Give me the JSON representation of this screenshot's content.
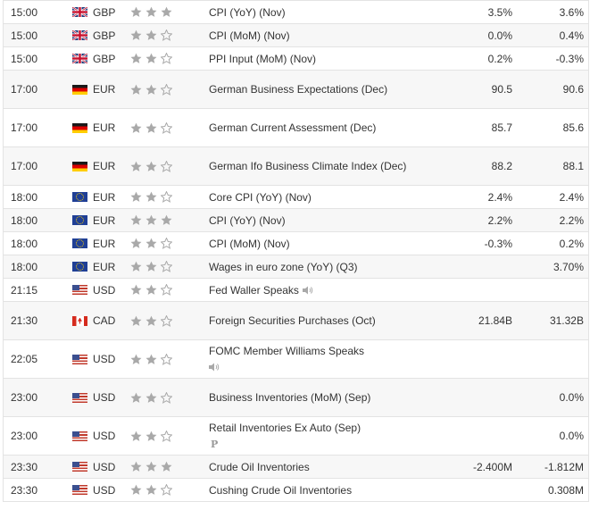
{
  "colors": {
    "star_filled": "#a9a9a9",
    "star_empty": "#a9a9a9",
    "border": "#e3e3e3",
    "text": "#333333"
  },
  "rows": [
    {
      "time": "15:00",
      "flag": "gb-flag-icon",
      "currency": "GBP",
      "importance": 3,
      "event": "CPI (YoY) (Nov)",
      "actual": "3.5%",
      "forecast": "3.6%",
      "lines": 1
    },
    {
      "time": "15:00",
      "flag": "gb-flag-icon",
      "currency": "GBP",
      "importance": 2,
      "event": "CPI (MoM) (Nov)",
      "actual": "0.0%",
      "forecast": "0.4%",
      "lines": 1
    },
    {
      "time": "15:00",
      "flag": "gb-flag-icon",
      "currency": "GBP",
      "importance": 2,
      "event": "PPI Input (MoM) (Nov)",
      "actual": "0.2%",
      "forecast": "-0.3%",
      "lines": 1
    },
    {
      "time": "17:00",
      "flag": "de-flag-icon",
      "currency": "EUR",
      "importance": 2,
      "event": "German Business Expectations (Dec)",
      "actual": "90.5",
      "forecast": "90.6",
      "lines": 2
    },
    {
      "time": "17:00",
      "flag": "de-flag-icon",
      "currency": "EUR",
      "importance": 2,
      "event": "German Current Assessment (Dec)",
      "actual": "85.7",
      "forecast": "85.6",
      "lines": 2
    },
    {
      "time": "17:00",
      "flag": "de-flag-icon",
      "currency": "EUR",
      "importance": 2,
      "event": "German Ifo Business Climate Index (Dec)",
      "actual": "88.2",
      "forecast": "88.1",
      "lines": 2
    },
    {
      "time": "18:00",
      "flag": "eu-flag-icon",
      "currency": "EUR",
      "importance": 2,
      "event": "Core CPI (YoY) (Nov)",
      "actual": "2.4%",
      "forecast": "2.4%",
      "lines": 1
    },
    {
      "time": "18:00",
      "flag": "eu-flag-icon",
      "currency": "EUR",
      "importance": 3,
      "event": "CPI (YoY) (Nov)",
      "actual": "2.2%",
      "forecast": "2.2%",
      "lines": 1
    },
    {
      "time": "18:00",
      "flag": "eu-flag-icon",
      "currency": "EUR",
      "importance": 2,
      "event": "CPI (MoM) (Nov)",
      "actual": "-0.3%",
      "forecast": "0.2%",
      "lines": 1
    },
    {
      "time": "18:00",
      "flag": "eu-flag-icon",
      "currency": "EUR",
      "importance": 2,
      "event": "Wages in euro zone (YoY) (Q3)",
      "actual": "",
      "forecast": "3.70%",
      "lines": 1
    },
    {
      "time": "21:15",
      "flag": "us-flag-icon",
      "currency": "USD",
      "importance": 2,
      "event": "Fed Waller Speaks",
      "actual": "",
      "forecast": "",
      "lines": 1,
      "speaker": true
    },
    {
      "time": "21:30",
      "flag": "ca-flag-icon",
      "currency": "CAD",
      "importance": 2,
      "event": "Foreign Securities Purchases (Oct)",
      "actual": "21.84B",
      "forecast": "31.32B",
      "lines": 2
    },
    {
      "time": "22:05",
      "flag": "us-flag-icon",
      "currency": "USD",
      "importance": 2,
      "event": "FOMC Member Williams Speaks",
      "actual": "",
      "forecast": "",
      "lines": 2,
      "speaker": true
    },
    {
      "time": "23:00",
      "flag": "us-flag-icon",
      "currency": "USD",
      "importance": 2,
      "event": "Business Inventories (MoM) (Sep)",
      "actual": "",
      "forecast": "0.0%",
      "lines": 2
    },
    {
      "time": "23:00",
      "flag": "us-flag-icon",
      "currency": "USD",
      "importance": 2,
      "event": "Retail Inventories Ex Auto (Sep)",
      "actual": "",
      "forecast": "0.0%",
      "lines": 2,
      "preliminary": "P"
    },
    {
      "time": "23:30",
      "flag": "us-flag-icon",
      "currency": "USD",
      "importance": 3,
      "event": "Crude Oil Inventories",
      "actual": "-2.400M",
      "forecast": "-1.812M",
      "lines": 1
    },
    {
      "time": "23:30",
      "flag": "us-flag-icon",
      "currency": "USD",
      "importance": 2,
      "event": "Cushing Crude Oil Inventories",
      "actual": "",
      "forecast": "0.308M",
      "lines": 1
    }
  ]
}
